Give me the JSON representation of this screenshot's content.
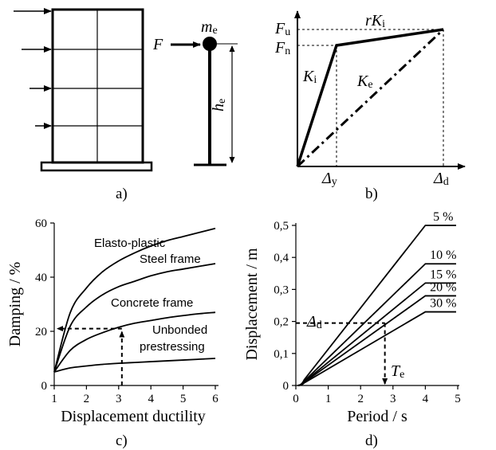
{
  "panel_a": {
    "caption": "a)",
    "force_label": "F",
    "mass_label": "m",
    "mass_sub": "e",
    "height_label": "h",
    "height_sub": "e"
  },
  "panel_b": {
    "caption": "b)",
    "fu": "F",
    "fu_sub": "u",
    "fn": "F",
    "fn_sub": "n",
    "rki": "rK",
    "rki_sub": "i",
    "ki": "K",
    "ki_sub": "i",
    "ke": "K",
    "ke_sub": "e",
    "dy": "Δ",
    "dy_sub": "y",
    "dd": "Δ",
    "dd_sub": "d"
  },
  "panel_c": {
    "caption": "c)",
    "chart_data": {
      "type": "line",
      "xlabel": "Displacement ductility",
      "ylabel": "Damping / %",
      "xlim": [
        1,
        6
      ],
      "ylim": [
        0,
        60
      ],
      "x_ticks": [
        "1",
        "2",
        "3",
        "4",
        "5",
        "6"
      ],
      "y_ticks": [
        "0",
        "20",
        "40",
        "60"
      ],
      "x": [
        1,
        1.5,
        2,
        2.5,
        3,
        3.5,
        4,
        4.5,
        5,
        5.5,
        6
      ],
      "series": [
        {
          "name": "Elasto-plastic",
          "values": [
            5,
            27,
            36,
            42,
            46,
            49,
            51.5,
            53.5,
            55,
            56.5,
            58
          ]
        },
        {
          "name": "Steel frame",
          "values": [
            5,
            22,
            29,
            33.5,
            36.5,
            38.5,
            40.5,
            42,
            43,
            44,
            45
          ]
        },
        {
          "name": "Concrete frame",
          "values": [
            5,
            13,
            17,
            19.5,
            21.5,
            23,
            24,
            25,
            25.8,
            26.5,
            27
          ]
        },
        {
          "name": "Unbonded prestressing",
          "values": [
            5,
            6.5,
            7.2,
            7.8,
            8.2,
            8.5,
            8.8,
            9.1,
            9.4,
            9.7,
            10
          ]
        }
      ],
      "series_labels": [
        {
          "line1": "Elasto-plastic",
          "line2": ""
        },
        {
          "line1": "Steel frame",
          "line2": ""
        },
        {
          "line1": "Concrete frame",
          "line2": ""
        },
        {
          "line1": "Unbonded",
          "line2": "prestressing"
        }
      ],
      "guide": {
        "x": 3.1,
        "y": 21
      }
    }
  },
  "panel_d": {
    "caption": "d)",
    "delta_label": "Δ",
    "delta_sub": "d",
    "te_label": "T",
    "te_sub": "e",
    "chart_data": {
      "type": "line",
      "xlabel": "Period / s",
      "ylabel": "Displacement / m",
      "xlim": [
        0,
        5
      ],
      "ylim": [
        0,
        0.5
      ],
      "x_ticks": [
        "0",
        "1",
        "2",
        "3",
        "4",
        "5"
      ],
      "y_ticks": [
        "0",
        "0,1",
        "0,2",
        "0,3",
        "0,4",
        "0,5"
      ],
      "series": [
        {
          "name": "5 %",
          "corner_period": 4.0,
          "plateau": 0.5
        },
        {
          "name": "10 %",
          "corner_period": 4.0,
          "plateau": 0.38
        },
        {
          "name": "15 %",
          "corner_period": 4.0,
          "plateau": 0.32
        },
        {
          "name": "20 %",
          "corner_period": 4.0,
          "plateau": 0.28
        },
        {
          "name": "30 %",
          "corner_period": 4.0,
          "plateau": 0.23
        }
      ],
      "start_period": 0.2,
      "guide": {
        "x": 2.75,
        "y": 0.195
      }
    }
  }
}
